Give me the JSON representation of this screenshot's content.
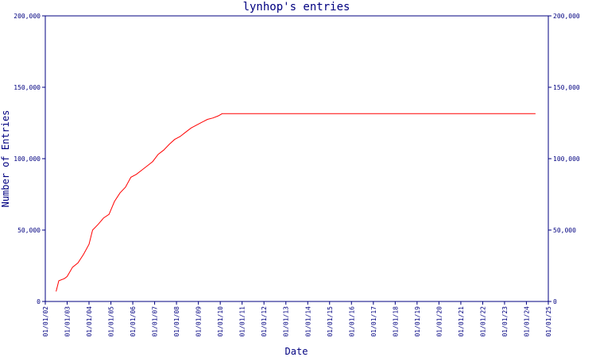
{
  "colors": {
    "axis": "#000080",
    "series": "#ff0000",
    "background": "#ffffff"
  },
  "chart_data": {
    "type": "line",
    "title": "lynhop's entries",
    "xlabel": "Date",
    "ylabel": "Number of Entries",
    "x_is_date": true,
    "xlim": [
      "2002-01-01",
      "2025-01-01"
    ],
    "ylim": [
      0,
      200000
    ],
    "grid": false,
    "x_ticks": [
      "2002-01-01",
      "2003-01-01",
      "2004-01-01",
      "2005-01-01",
      "2006-01-01",
      "2007-01-01",
      "2008-01-01",
      "2009-01-01",
      "2010-01-01",
      "2011-01-01",
      "2012-01-01",
      "2013-01-01",
      "2014-01-01",
      "2015-01-01",
      "2016-01-01",
      "2017-01-01",
      "2018-01-01",
      "2019-01-01",
      "2020-01-01",
      "2021-01-01",
      "2022-01-01",
      "2023-01-01",
      "2024-01-01",
      "2025-01-01"
    ],
    "x_tick_labels": [
      "01/01/02",
      "01/01/03",
      "01/01/04",
      "01/01/05",
      "01/01/06",
      "01/01/07",
      "01/01/08",
      "01/01/09",
      "01/01/10",
      "01/01/11",
      "01/01/12",
      "01/01/13",
      "01/01/14",
      "01/01/15",
      "01/01/16",
      "01/01/17",
      "01/01/18",
      "01/01/19",
      "01/01/20",
      "01/01/21",
      "01/01/22",
      "01/01/23",
      "01/01/24",
      "01/01/25"
    ],
    "y_ticks": [
      0,
      50000,
      100000,
      150000,
      200000
    ],
    "y_tick_labels": [
      "0",
      "50,000",
      "100,000",
      "150,000",
      "200,000"
    ],
    "series": [
      {
        "points": [
          [
            "2002-07-01",
            7000
          ],
          [
            "2002-08-15",
            14500
          ],
          [
            "2002-11-15",
            16000
          ],
          [
            "2003-01-01",
            17500
          ],
          [
            "2003-04-01",
            24000
          ],
          [
            "2003-07-01",
            27000
          ],
          [
            "2003-10-01",
            33000
          ],
          [
            "2004-01-01",
            40000
          ],
          [
            "2004-03-01",
            50000
          ],
          [
            "2004-06-01",
            54000
          ],
          [
            "2004-09-01",
            58500
          ],
          [
            "2004-12-01",
            61000
          ],
          [
            "2005-03-01",
            70000
          ],
          [
            "2005-06-01",
            76000
          ],
          [
            "2005-09-01",
            80000
          ],
          [
            "2005-12-01",
            87000
          ],
          [
            "2006-03-01",
            89000
          ],
          [
            "2006-06-01",
            92000
          ],
          [
            "2006-09-01",
            95000
          ],
          [
            "2006-12-01",
            98000
          ],
          [
            "2007-03-01",
            103000
          ],
          [
            "2007-06-01",
            106000
          ],
          [
            "2007-09-01",
            110000
          ],
          [
            "2007-12-01",
            113500
          ],
          [
            "2008-03-01",
            115500
          ],
          [
            "2008-06-01",
            118500
          ],
          [
            "2008-09-01",
            121500
          ],
          [
            "2008-12-01",
            123500
          ],
          [
            "2009-03-01",
            125500
          ],
          [
            "2009-06-01",
            127500
          ],
          [
            "2009-09-01",
            128500
          ],
          [
            "2009-12-01",
            130000
          ],
          [
            "2010-02-01",
            131500
          ],
          [
            "2012-01-01",
            131500
          ],
          [
            "2016-01-01",
            131500
          ],
          [
            "2020-01-01",
            131500
          ],
          [
            "2024-06-01",
            131500
          ]
        ]
      }
    ]
  }
}
